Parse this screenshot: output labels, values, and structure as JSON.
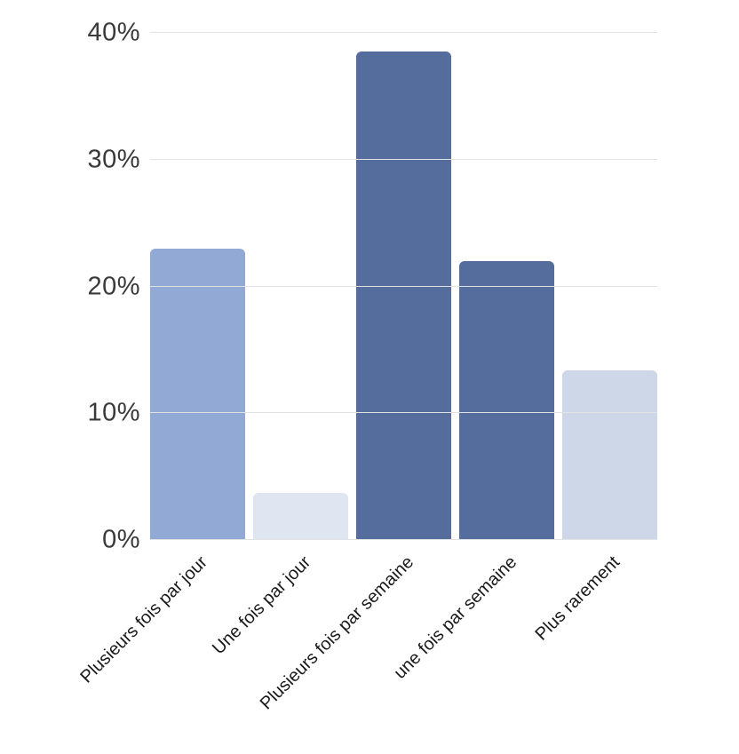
{
  "chart_data": {
    "type": "bar",
    "title": "",
    "xlabel": "",
    "ylabel": "",
    "unit": "%",
    "categories": [
      "Plusieurs fois par jour",
      "Une fois par jour",
      "Plusieurs fois par semaine",
      "une fois par semaine",
      "Plus rarement"
    ],
    "values": [
      23,
      3.7,
      38.5,
      22,
      13.4
    ],
    "bar_colors": [
      "#92a8d5",
      "#dfe5f1",
      "#546d9c",
      "#546d9c",
      "#cdd7e8"
    ],
    "ylim": [
      0,
      40
    ],
    "yticks": [
      {
        "value": 0,
        "label": "0%"
      },
      {
        "value": 10,
        "label": "10%"
      },
      {
        "value": 20,
        "label": "20%"
      },
      {
        "value": 30,
        "label": "30%"
      },
      {
        "value": 40,
        "label": "40%"
      }
    ],
    "grid": true,
    "legend": false,
    "colors": {
      "grid": "#e2e2e2",
      "ytick_text": "#3a3a3a",
      "xtick_text": "#1a1a1a",
      "background": "#ffffff"
    }
  }
}
